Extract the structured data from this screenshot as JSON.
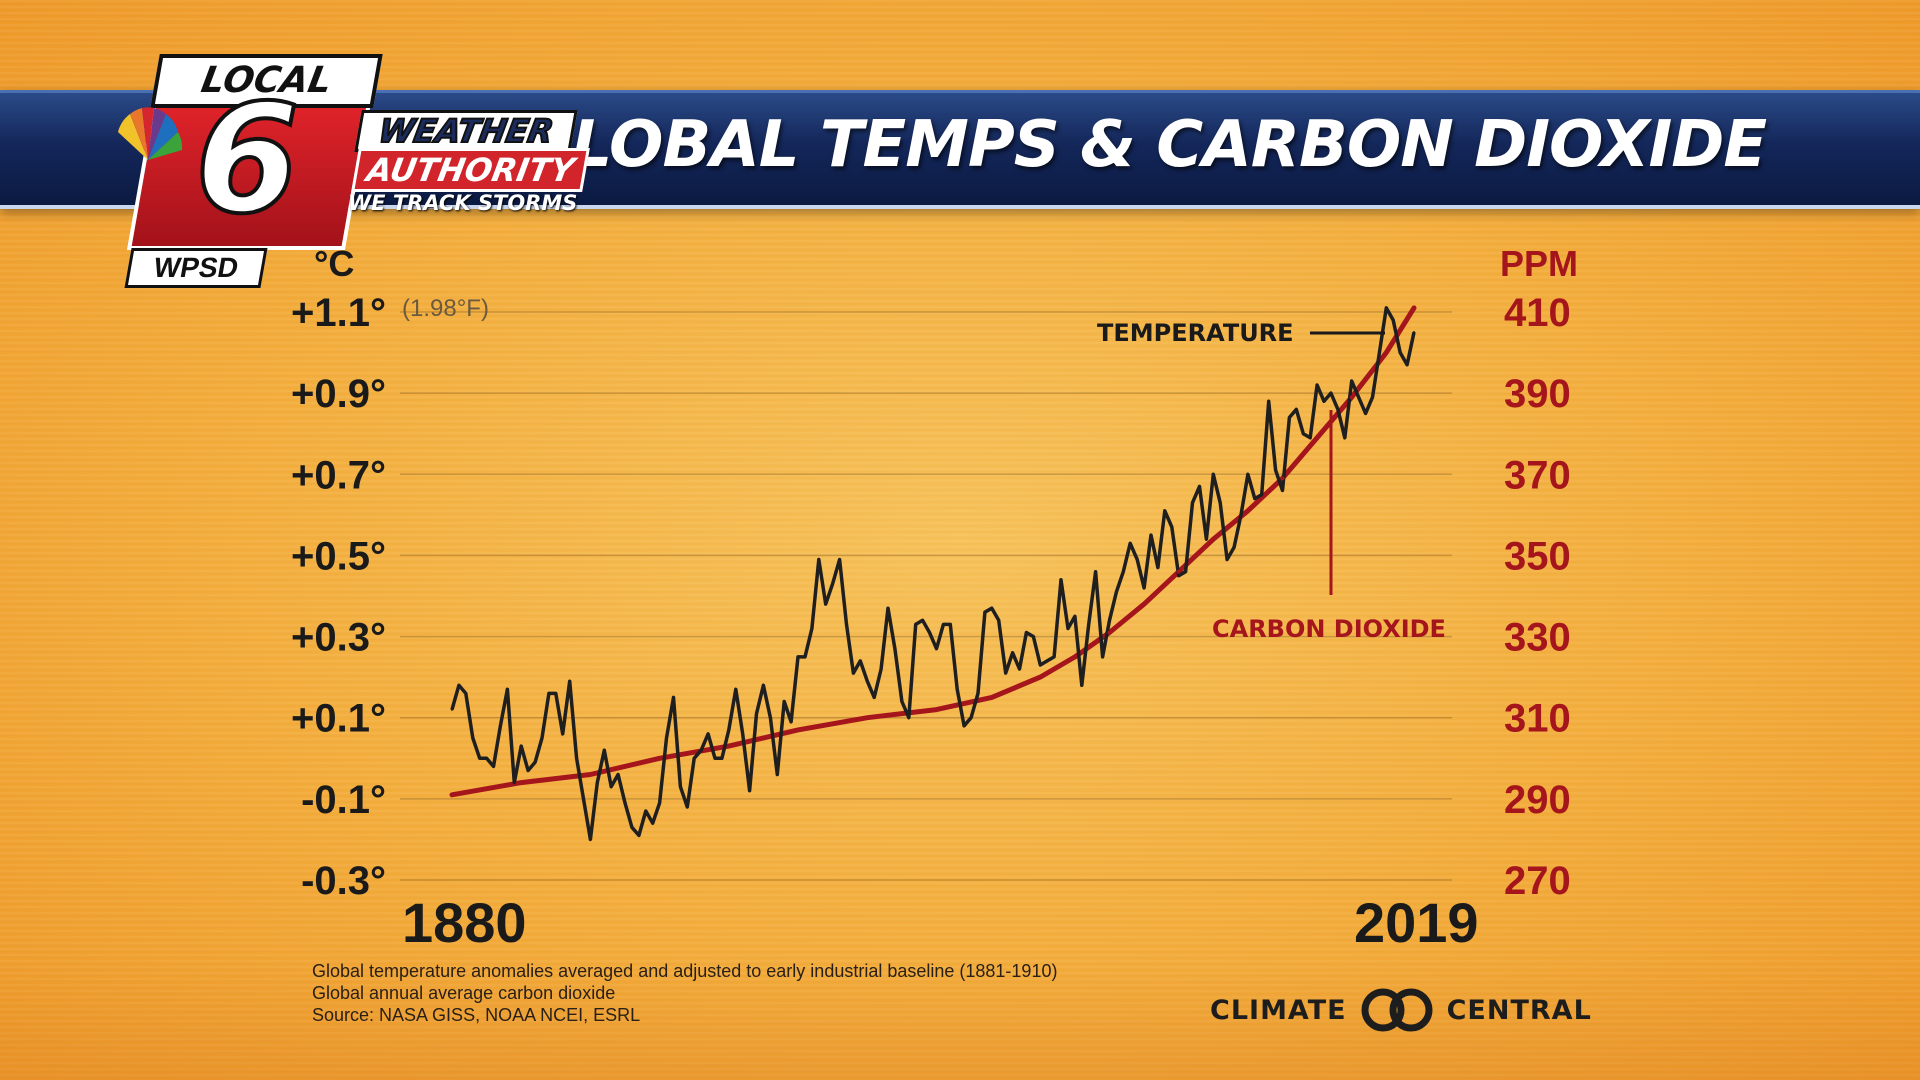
{
  "header": {
    "title": "GLOBAL TEMPS & CARBON DIOXIDE"
  },
  "logo": {
    "local": "LOCAL",
    "six": "6",
    "station": "WPSD",
    "weather": "WEATHER",
    "authority": "AUTHORITY",
    "tagline": "WE TRACK STORMS"
  },
  "chart_data": {
    "type": "line",
    "title": "GLOBAL TEMPS & CARBON DIOXIDE",
    "left_axis": {
      "unit": "°C",
      "ticks": [
        "+1.1°",
        "+0.9°",
        "+0.7°",
        "+0.5°",
        "+0.3°",
        "+0.1°",
        "-0.1°",
        "-0.3°"
      ],
      "tick_values": [
        1.1,
        0.9,
        0.7,
        0.5,
        0.3,
        0.1,
        -0.1,
        -0.3
      ],
      "top_annotation": "(1.98°F)",
      "ylim": [
        -0.3,
        1.1
      ]
    },
    "right_axis": {
      "unit": "PPM",
      "ticks": [
        "410",
        "390",
        "370",
        "350",
        "330",
        "310",
        "290",
        "270"
      ],
      "tick_values": [
        410,
        390,
        370,
        350,
        330,
        310,
        290,
        270
      ],
      "ylim": [
        270,
        410
      ]
    },
    "x_labels": [
      "1880",
      "2019"
    ],
    "xlim": [
      1880,
      2019
    ],
    "grid": true,
    "annotations": {
      "temperature": "TEMPERATURE",
      "co2": "CARBON DIOXIDE"
    },
    "series": [
      {
        "name": "TEMPERATURE",
        "axis": "left",
        "color": "#1f1f1f",
        "x": [
          1880,
          1881,
          1882,
          1883,
          1884,
          1885,
          1886,
          1887,
          1888,
          1889,
          1890,
          1891,
          1892,
          1893,
          1894,
          1895,
          1896,
          1897,
          1898,
          1899,
          1900,
          1901,
          1902,
          1903,
          1904,
          1905,
          1906,
          1907,
          1908,
          1909,
          1910,
          1911,
          1912,
          1913,
          1914,
          1915,
          1916,
          1917,
          1918,
          1919,
          1920,
          1921,
          1922,
          1923,
          1924,
          1925,
          1926,
          1927,
          1928,
          1929,
          1930,
          1931,
          1932,
          1933,
          1934,
          1935,
          1936,
          1937,
          1938,
          1939,
          1940,
          1941,
          1942,
          1943,
          1944,
          1945,
          1946,
          1947,
          1948,
          1949,
          1950,
          1951,
          1952,
          1953,
          1954,
          1955,
          1956,
          1957,
          1958,
          1959,
          1960,
          1961,
          1962,
          1963,
          1964,
          1965,
          1966,
          1967,
          1968,
          1969,
          1970,
          1971,
          1972,
          1973,
          1974,
          1975,
          1976,
          1977,
          1978,
          1979,
          1980,
          1981,
          1982,
          1983,
          1984,
          1985,
          1986,
          1987,
          1988,
          1989,
          1990,
          1991,
          1992,
          1993,
          1994,
          1995,
          1996,
          1997,
          1998,
          1999,
          2000,
          2001,
          2002,
          2003,
          2004,
          2005,
          2006,
          2007,
          2008,
          2009,
          2010,
          2011,
          2012,
          2013,
          2014,
          2015,
          2016,
          2017,
          2018,
          2019
        ],
        "values": [
          0.12,
          0.18,
          0.16,
          0.05,
          0.0,
          0.0,
          -0.02,
          0.08,
          0.17,
          -0.06,
          0.03,
          -0.03,
          -0.01,
          0.05,
          0.16,
          0.16,
          0.06,
          0.19,
          0.0,
          -0.1,
          -0.2,
          -0.06,
          0.02,
          -0.07,
          -0.04,
          -0.11,
          -0.17,
          -0.19,
          -0.13,
          -0.16,
          -0.11,
          0.05,
          0.15,
          -0.07,
          -0.12,
          0.0,
          0.02,
          0.06,
          0.0,
          0.0,
          0.07,
          0.17,
          0.06,
          -0.08,
          0.11,
          0.18,
          0.1,
          -0.04,
          0.14,
          0.09,
          0.25,
          0.25,
          0.32,
          0.49,
          0.38,
          0.43,
          0.49,
          0.33,
          0.21,
          0.24,
          0.19,
          0.15,
          0.22,
          0.37,
          0.27,
          0.14,
          0.1,
          0.33,
          0.34,
          0.31,
          0.27,
          0.33,
          0.33,
          0.17,
          0.08,
          0.1,
          0.16,
          0.36,
          0.37,
          0.34,
          0.21,
          0.26,
          0.22,
          0.31,
          0.3,
          0.23,
          0.24,
          0.25,
          0.44,
          0.32,
          0.35,
          0.18,
          0.33,
          0.46,
          0.25,
          0.34,
          0.41,
          0.46,
          0.53,
          0.49,
          0.42,
          0.55,
          0.47,
          0.61,
          0.57,
          0.45,
          0.46,
          0.63,
          0.67,
          0.54,
          0.7,
          0.63,
          0.49,
          0.52,
          0.6,
          0.7,
          0.64,
          0.65,
          0.88,
          0.71,
          0.66,
          0.84,
          0.86,
          0.8,
          0.79,
          0.92,
          0.88,
          0.9,
          0.86,
          0.79,
          0.93,
          0.89,
          0.85,
          0.89,
          1.0,
          1.11,
          1.08,
          1.0,
          0.97,
          1.05
        ]
      },
      {
        "name": "CARBON DIOXIDE",
        "axis": "right",
        "color": "#a5151c",
        "x": [
          1880,
          1890,
          1900,
          1910,
          1920,
          1930,
          1940,
          1950,
          1958,
          1965,
          1970,
          1975,
          1980,
          1985,
          1990,
          1995,
          2000,
          2005,
          2010,
          2015,
          2019
        ],
        "values": [
          291,
          294,
          296,
          300,
          303,
          307,
          310,
          312,
          315,
          320,
          325,
          331,
          338,
          346,
          354,
          361,
          369,
          379,
          389,
          400,
          411
        ]
      }
    ]
  },
  "footnotes": [
    "Global temperature anomalies averaged and adjusted to early industrial baseline (1881-1910)",
    "Global annual average carbon dioxide",
    "Source: NASA GISS, NOAA NCEI, ESRL"
  ],
  "source_logo": {
    "left": "CLIMATE",
    "right": "CENTRAL"
  }
}
